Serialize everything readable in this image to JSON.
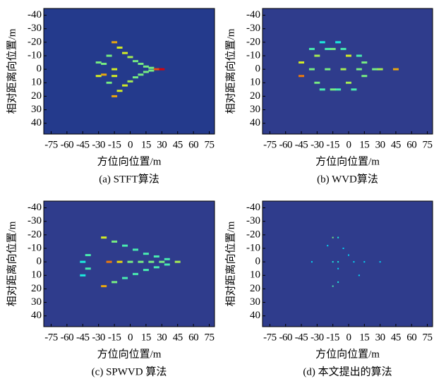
{
  "chart_data": [
    {
      "type": "heatmap",
      "title": "(a) STFT算法",
      "x_label": "方位向位置/m",
      "y_label": "相对距离向位置/m",
      "xlim": [
        -82,
        80
      ],
      "ylim": [
        -45,
        48
      ],
      "xticks": [
        -75,
        -60,
        -45,
        -30,
        -15,
        0,
        15,
        30,
        45,
        60,
        75
      ],
      "yticks": [
        -40,
        -30,
        -20,
        -10,
        0,
        10,
        20,
        30,
        40
      ],
      "background": "#243a8c",
      "colormap": "jet",
      "x": [
        -15,
        -10,
        -5,
        0,
        5,
        10,
        15,
        20,
        25,
        30,
        -15,
        -10,
        -5,
        0,
        5,
        10,
        15,
        20,
        -30,
        -25,
        -20,
        -30,
        -25,
        -20,
        -15,
        -15
      ],
      "y": [
        -20,
        -16,
        -12,
        -9,
        -6,
        -4,
        -2,
        -1,
        0,
        0,
        20,
        16,
        12,
        9,
        6,
        4,
        2,
        1,
        -5,
        4,
        -10,
        5,
        -4,
        10,
        0,
        5
      ],
      "values": [
        0.7,
        0.6,
        0.6,
        0.55,
        0.5,
        0.5,
        0.5,
        0.5,
        0.8,
        0.9,
        0.7,
        0.6,
        0.6,
        0.55,
        0.5,
        0.5,
        0.5,
        0.5,
        0.5,
        0.7,
        0.5,
        0.6,
        0.5,
        0.5,
        0.6,
        0.6
      ]
    },
    {
      "type": "heatmap",
      "title": "(b) WVD算法",
      "x_label": "方位向位置/m",
      "y_label": "相对距离向位置/m",
      "xlim": [
        -82,
        80
      ],
      "ylim": [
        -45,
        48
      ],
      "xticks": [
        -75,
        -60,
        -45,
        -30,
        -15,
        0,
        15,
        30,
        45,
        60,
        75
      ],
      "yticks": [
        -40,
        -30,
        -20,
        -10,
        0,
        10,
        20,
        30,
        40
      ],
      "background": "#2f3c8c",
      "colormap": "jet",
      "x": [
        -45,
        -45,
        -30,
        -30,
        -15,
        -15,
        0,
        0,
        15,
        15,
        30,
        45,
        -35,
        -20,
        -5,
        10,
        25,
        -35,
        -20,
        -5,
        10,
        -25,
        -10,
        5,
        -25,
        -10
      ],
      "y": [
        -5,
        5,
        -10,
        10,
        -15,
        15,
        -10,
        10,
        -5,
        5,
        0,
        0,
        0,
        0,
        0,
        0,
        0,
        -15,
        -15,
        -15,
        -10,
        15,
        15,
        15,
        -20,
        -20
      ],
      "values": [
        0.6,
        0.75,
        0.55,
        0.5,
        0.5,
        0.5,
        0.6,
        0.55,
        0.5,
        0.5,
        0.55,
        0.7,
        0.5,
        0.5,
        0.55,
        0.5,
        0.5,
        0.45,
        0.45,
        0.45,
        0.45,
        0.45,
        0.45,
        0.45,
        0.4,
        0.4
      ]
    },
    {
      "type": "heatmap",
      "title": "(c) SPWVD 算法",
      "x_label": "方位向位置/m",
      "y_label": "相对距离向位置/m",
      "xlim": [
        -82,
        80
      ],
      "ylim": [
        -45,
        48
      ],
      "xticks": [
        -75,
        -60,
        -45,
        -30,
        -15,
        0,
        15,
        30,
        45,
        60,
        75
      ],
      "yticks": [
        -40,
        -30,
        -20,
        -10,
        0,
        10,
        20,
        30,
        40
      ],
      "background": "#2f3c8c",
      "colormap": "jet",
      "x": [
        -25,
        -15,
        -5,
        5,
        15,
        25,
        35,
        -25,
        -15,
        -5,
        5,
        15,
        25,
        35,
        -45,
        -40,
        -20,
        -10,
        0,
        10,
        20,
        30,
        45,
        -45,
        -40
      ],
      "y": [
        -18,
        -15,
        -12,
        -9,
        -6,
        -4,
        -2,
        18,
        15,
        12,
        9,
        6,
        4,
        2,
        0,
        -5,
        0,
        0,
        0,
        0,
        0,
        0,
        0,
        10,
        5
      ],
      "values": [
        0.6,
        0.5,
        0.45,
        0.45,
        0.45,
        0.45,
        0.45,
        0.7,
        0.5,
        0.45,
        0.45,
        0.45,
        0.45,
        0.45,
        0.4,
        0.45,
        0.75,
        0.65,
        0.5,
        0.5,
        0.5,
        0.5,
        0.55,
        0.4,
        0.45
      ]
    },
    {
      "type": "heatmap",
      "title": "(d) 本文提出的算法",
      "x_label": "方位向位置/m",
      "y_label": "相对距离向位置/m",
      "xlim": [
        -82,
        80
      ],
      "ylim": [
        -45,
        48
      ],
      "xticks": [
        -75,
        -60,
        -45,
        -30,
        -15,
        0,
        15,
        30,
        45,
        60,
        75
      ],
      "yticks": [
        -40,
        -30,
        -20,
        -10,
        0,
        10,
        20,
        30,
        40
      ],
      "background": "#2f3c8c",
      "colormap": "jet",
      "x": [
        -15,
        -10,
        -5,
        0,
        -20,
        -15,
        -10,
        5,
        15,
        30,
        -35,
        -10,
        -15,
        -10,
        10
      ],
      "y": [
        -18,
        -18,
        -10,
        -5,
        -12,
        0,
        0,
        0,
        0,
        0,
        0,
        5,
        18,
        15,
        10
      ],
      "values": [
        0.5,
        0.4,
        0.35,
        0.35,
        0.35,
        0.4,
        0.4,
        0.35,
        0.35,
        0.35,
        0.35,
        0.35,
        0.45,
        0.4,
        0.35
      ]
    }
  ]
}
